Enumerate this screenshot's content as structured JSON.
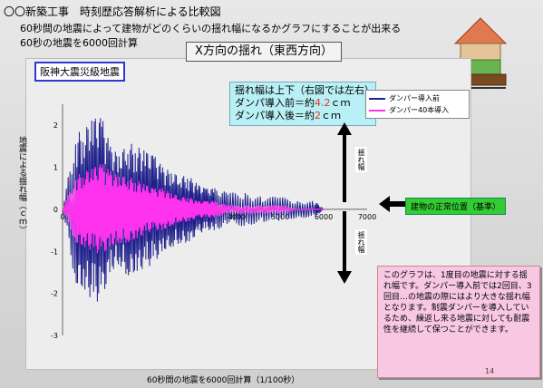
{
  "header": {
    "title": "〇〇新築工事　時刻歴応答解析による比較図",
    "subtitle1": "60秒間の地震によって建物がどのくらいの揺れ幅になるかグラフにすることが出来る",
    "subtitle2": "60秒の地震を6000回計算"
  },
  "chart_title": "X方向の揺れ（東西方向）",
  "event_label": "阪神大震災級地震",
  "note": {
    "line1": "揺れ幅は上下（右図では左右）",
    "line2_pre": "ダンパ導入前＝約",
    "line2_val": "4.2",
    "line2_unit": "ｃｍ",
    "line3_pre": "ダンパ導入後＝約",
    "line3_val": "2",
    "line3_unit": "ｃｍ"
  },
  "ylabel": "地震による揺れ幅（ｃｍ）",
  "xlabel": "60秒間の地震を6000回計算（1/100秒）",
  "sway_label": "揺れ幅",
  "neutral_label": "建物の正常位置（基準）",
  "explanation": "このグラフは、1度目の地震に対する揺れ幅です。ダンパー導入前では2回目、3回目…の地震の際にはより大きな揺れ幅となります。制震ダンパーを導入しているため、繰返し来る地震に対しても耐震性を継続して保つことができます。",
  "page_number": "14",
  "colors": {
    "before": "#1f1f8c",
    "after": "#ff33ee",
    "accent_red": "#e0362a",
    "neutral_green": "#33cc33"
  },
  "icons": [
    "house-icon",
    "arrow-up-down-icon",
    "arrow-left-icon"
  ],
  "chart_data": {
    "type": "line",
    "x_ticks": [
      "0",
      "1000",
      "2000",
      "3000",
      "4000",
      "5000",
      "6000",
      "7000"
    ],
    "y_ticks": [
      "2",
      "1",
      "0",
      "-1",
      "-2",
      "-3"
    ],
    "xlim": [
      0,
      7000
    ],
    "ylim": [
      -3,
      2.5
    ],
    "series": [
      {
        "name": "ダンパー導入前",
        "x": [
          0,
          300,
          500,
          700,
          900,
          1100,
          1300,
          1500,
          1700,
          1900,
          2100,
          2300,
          2500,
          2700,
          2900,
          3100,
          3300,
          3500,
          3800,
          4200,
          4600,
          5000,
          5400,
          5800,
          6000
        ],
        "y": [
          0.0,
          1.8,
          -1.9,
          2.2,
          -2.2,
          1.5,
          -1.3,
          1.6,
          -1.5,
          1.4,
          -1.3,
          1.0,
          -0.9,
          0.8,
          -0.8,
          0.6,
          -0.5,
          0.5,
          -0.4,
          0.4,
          -0.3,
          0.3,
          -0.2,
          0.2,
          0.0
        ]
      },
      {
        "name": "ダンパー40本導入",
        "x": [
          0,
          300,
          500,
          700,
          900,
          1100,
          1300,
          1500,
          1700,
          1900,
          2100,
          2300,
          2500,
          2700,
          2900,
          3100,
          3300,
          3500,
          3800,
          4200,
          4600,
          5000,
          5400,
          5800,
          6000
        ],
        "y": [
          0.0,
          0.8,
          -0.9,
          1.0,
          -1.1,
          0.9,
          -0.8,
          0.8,
          -0.7,
          0.6,
          -0.5,
          0.5,
          -0.4,
          0.3,
          -0.3,
          0.2,
          -0.2,
          0.2,
          -0.1,
          0.1,
          -0.1,
          0.1,
          0.0,
          0.0,
          0.0
        ]
      }
    ]
  }
}
